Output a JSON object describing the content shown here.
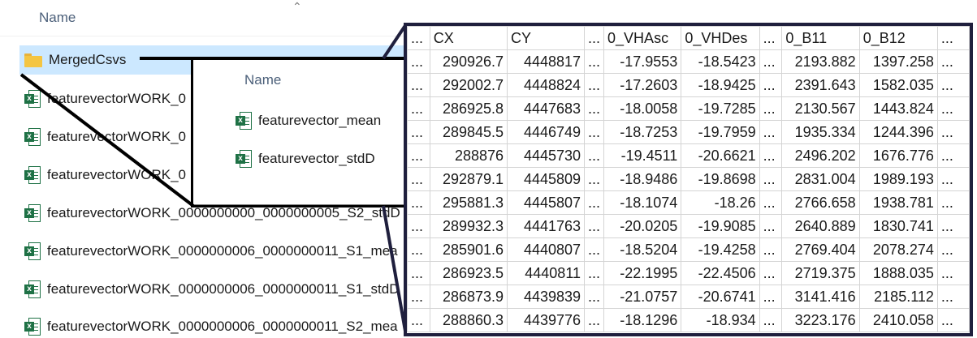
{
  "explorer": {
    "header": "Name",
    "items": [
      {
        "label": "MergedCsvs",
        "icon": "folder-icon",
        "selected": true
      },
      {
        "label": "featurevectorWORK_0",
        "icon": "excel-file-icon"
      },
      {
        "label": "featurevectorWORK_0",
        "icon": "excel-file-icon"
      },
      {
        "label": "featurevectorWORK_0",
        "icon": "excel-file-icon"
      },
      {
        "label": "featurevectorWORK_0000000000_0000000005_S2_stdD",
        "icon": "excel-file-icon"
      },
      {
        "label": "featurevectorWORK_0000000006_0000000011_S1_mea",
        "icon": "excel-file-icon"
      },
      {
        "label": "featurevectorWORK_0000000006_0000000011_S1_stdD",
        "icon": "excel-file-icon"
      },
      {
        "label": "featurevectorWORK_0000000006_0000000011_S2_mea",
        "icon": "excel-file-icon"
      }
    ]
  },
  "popup": {
    "header": "Name",
    "items": [
      {
        "label": "featurevector_mean",
        "icon": "excel-file-icon"
      },
      {
        "label": "featurevector_stdD",
        "icon": "excel-file-icon"
      }
    ]
  },
  "table": {
    "headers": [
      "...",
      "CX",
      "CY",
      "...",
      "0_VHAsc",
      "0_VHDes",
      "...",
      "0_B11",
      "0_B12",
      "..."
    ],
    "rows": [
      [
        "...",
        "290926.7",
        "4448817",
        "...",
        "-17.9553",
        "-18.5423",
        "...",
        "2193.882",
        "1397.258",
        "..."
      ],
      [
        "...",
        "292002.7",
        "4448824",
        "...",
        "-17.2603",
        "-18.9425",
        "...",
        "2391.643",
        "1582.035",
        "..."
      ],
      [
        "...",
        "286925.8",
        "4447683",
        "...",
        "-18.0058",
        "-19.7285",
        "...",
        "2130.567",
        "1443.824",
        "..."
      ],
      [
        "...",
        "289845.5",
        "4446749",
        "...",
        "-18.7253",
        "-19.7959",
        "...",
        "1935.334",
        "1244.396",
        "..."
      ],
      [
        "...",
        "288876",
        "4445730",
        "...",
        "-19.4511",
        "-20.6621",
        "...",
        "2496.202",
        "1676.776",
        "..."
      ],
      [
        "...",
        "292879.1",
        "4445809",
        "...",
        "-18.9486",
        "-19.8698",
        "...",
        "2831.004",
        "1989.193",
        "..."
      ],
      [
        "...",
        "295881.3",
        "4445807",
        "...",
        "-18.1074",
        "-18.26",
        "...",
        "2766.658",
        "1938.781",
        "..."
      ],
      [
        "...",
        "289932.3",
        "4441763",
        "...",
        "-20.0205",
        "-19.9085",
        "...",
        "2640.889",
        "1830.741",
        "..."
      ],
      [
        "...",
        "285901.6",
        "4440807",
        "...",
        "-18.5204",
        "-19.4258",
        "...",
        "2769.404",
        "2078.274",
        "..."
      ],
      [
        "...",
        "286923.5",
        "4440811",
        "...",
        "-22.1995",
        "-22.4506",
        "...",
        "2719.375",
        "1888.035",
        "..."
      ],
      [
        "...",
        "286873.9",
        "4439839",
        "...",
        "-21.0757",
        "-20.6741",
        "...",
        "3141.416",
        "2185.112",
        "..."
      ],
      [
        "...",
        "288860.3",
        "4439776",
        "...",
        "-18.1296",
        "-18.934",
        "...",
        "3223.176",
        "2410.058",
        "..."
      ]
    ]
  },
  "colors": {
    "selection": "#cce8ff",
    "excel_green": "#1e7145",
    "folder_yellow": "#f4c542",
    "frame": "#1f1f3d"
  }
}
